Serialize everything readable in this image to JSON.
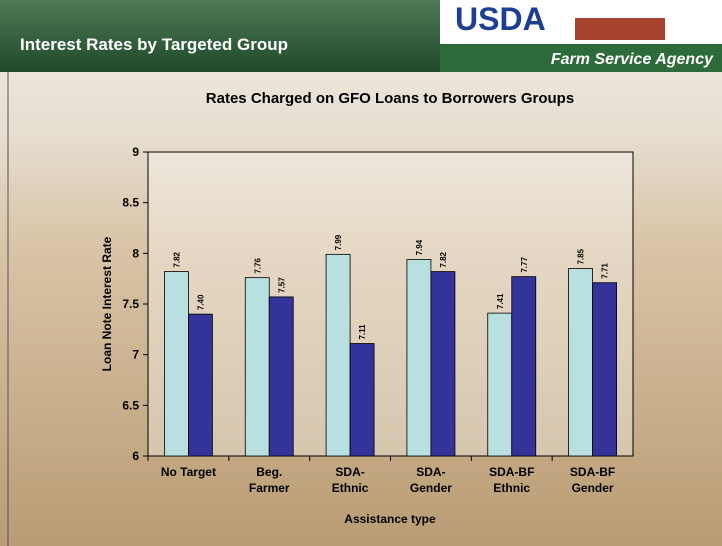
{
  "header": {
    "title": "Interest Rates by Targeted Group",
    "logo": "USDA",
    "agency": "Farm Service Agency"
  },
  "chart_data": {
    "type": "bar",
    "title": "Rates Charged on GFO Loans to Borrowers Groups",
    "x_label": "Assistance type",
    "y_label": "Loan Note Interest Rate",
    "categories": [
      [
        "No Target"
      ],
      [
        "Beg.",
        "Farmer"
      ],
      [
        "SDA-",
        "Ethnic"
      ],
      [
        "SDA-",
        "Gender"
      ],
      [
        "SDA-BF",
        "Ethnic"
      ],
      [
        "SDA-BF",
        "Gender"
      ]
    ],
    "series": [
      {
        "color": "#b8e0e0",
        "values": [
          7.82,
          7.76,
          7.99,
          7.94,
          7.41,
          7.85
        ],
        "value_labels": [
          "7.82",
          "7.76",
          "7.99",
          "7.94",
          "7.41",
          "7.85"
        ]
      },
      {
        "color": "#33339a",
        "values": [
          7.4,
          7.57,
          7.11,
          7.82,
          7.77,
          7.71
        ],
        "value_labels": [
          "7.40",
          "7.57",
          "7.11",
          "7.82",
          "7.77",
          "7.71"
        ]
      }
    ],
    "ylim": [
      6,
      9
    ],
    "yticks": [
      6,
      6.5,
      7,
      7.5,
      8,
      8.5,
      9
    ]
  }
}
